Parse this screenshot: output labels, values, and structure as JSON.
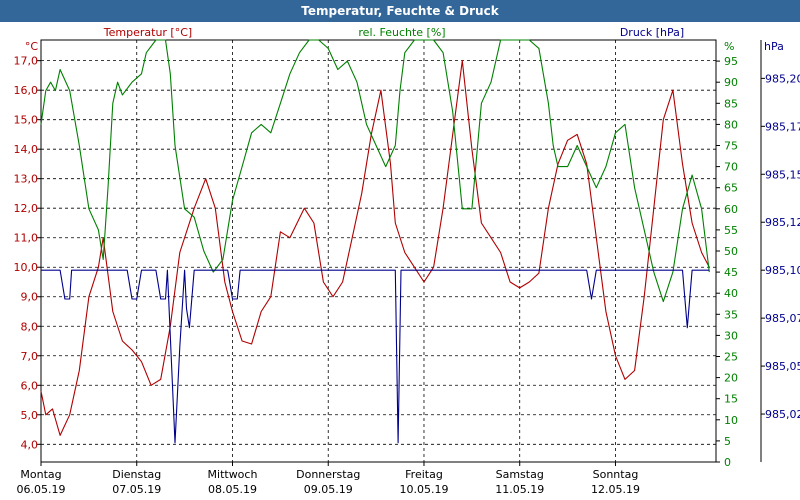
{
  "window": {
    "title": "Temperatur, Feuchte & Druck"
  },
  "colors": {
    "temperature": "#b00000",
    "humidity": "#008000",
    "pressure": "#00008b",
    "title_bg": "#336699"
  },
  "chart_data": {
    "type": "line",
    "title": "Temperatur, Feuchte & Druck",
    "grid": true,
    "axes": {
      "temperature": {
        "label": "Temperatur [°C]",
        "unit": "°C",
        "range": [
          3.4,
          17.7
        ],
        "ticks": [
          4.0,
          5.0,
          6.0,
          7.0,
          8.0,
          9.0,
          10.0,
          11.0,
          12.0,
          13.0,
          14.0,
          15.0,
          16.0,
          17.0
        ]
      },
      "humidity": {
        "label": "rel. Feuchte [%]",
        "unit": "%",
        "range": [
          0,
          100
        ],
        "ticks": [
          0,
          5,
          10,
          15,
          20,
          25,
          30,
          35,
          40,
          45,
          50,
          55,
          60,
          65,
          70,
          75,
          80,
          85,
          90,
          95
        ]
      },
      "pressure": {
        "label": "Druck [hPa]",
        "unit": "hPa",
        "range": [
          985.0,
          985.22
        ],
        "ticks": [
          "985,02",
          "985,05",
          "985,07",
          "985,10",
          "985,12",
          "985,15",
          "985,17",
          "985,20"
        ],
        "tick_values": [
          985.025,
          985.05,
          985.075,
          985.1,
          985.125,
          985.15,
          985.175,
          985.2
        ]
      }
    },
    "x_axis": {
      "range": [
        0,
        7.05
      ],
      "categories": [
        {
          "day": "Montag",
          "date": "06.05.19"
        },
        {
          "day": "Dienstag",
          "date": "07.05.19"
        },
        {
          "day": "Mittwoch",
          "date": "08.05.19"
        },
        {
          "day": "Donnerstag",
          "date": "09.05.19"
        },
        {
          "day": "Freitag",
          "date": "10.05.19"
        },
        {
          "day": "Samstag",
          "date": "11.05.19"
        },
        {
          "day": "Sonntag",
          "date": "12.05.19"
        }
      ]
    },
    "series": [
      {
        "name": "Temperatur [°C]",
        "axis": "temperature",
        "points": [
          [
            0.0,
            5.8
          ],
          [
            0.05,
            5.0
          ],
          [
            0.12,
            5.2
          ],
          [
            0.2,
            4.3
          ],
          [
            0.3,
            5.0
          ],
          [
            0.4,
            6.5
          ],
          [
            0.5,
            9.0
          ],
          [
            0.6,
            10.0
          ],
          [
            0.65,
            11.0
          ],
          [
            0.75,
            8.5
          ],
          [
            0.85,
            7.5
          ],
          [
            0.95,
            7.2
          ],
          [
            1.05,
            6.8
          ],
          [
            1.15,
            6.0
          ],
          [
            1.25,
            6.2
          ],
          [
            1.35,
            8.0
          ],
          [
            1.45,
            10.5
          ],
          [
            1.6,
            12.0
          ],
          [
            1.72,
            13.0
          ],
          [
            1.82,
            12.0
          ],
          [
            1.92,
            9.5
          ],
          [
            2.0,
            8.5
          ],
          [
            2.1,
            7.5
          ],
          [
            2.2,
            7.4
          ],
          [
            2.3,
            8.5
          ],
          [
            2.4,
            9.0
          ],
          [
            2.5,
            11.2
          ],
          [
            2.6,
            11.0
          ],
          [
            2.75,
            12.0
          ],
          [
            2.85,
            11.5
          ],
          [
            2.95,
            9.5
          ],
          [
            3.05,
            9.0
          ],
          [
            3.15,
            9.5
          ],
          [
            3.25,
            11.0
          ],
          [
            3.35,
            12.5
          ],
          [
            3.45,
            14.5
          ],
          [
            3.55,
            16.0
          ],
          [
            3.65,
            13.5
          ],
          [
            3.7,
            11.5
          ],
          [
            3.8,
            10.5
          ],
          [
            3.9,
            10.0
          ],
          [
            4.0,
            9.5
          ],
          [
            4.1,
            10.0
          ],
          [
            4.2,
            12.0
          ],
          [
            4.3,
            14.5
          ],
          [
            4.4,
            17.0
          ],
          [
            4.5,
            14.0
          ],
          [
            4.6,
            11.5
          ],
          [
            4.7,
            11.0
          ],
          [
            4.8,
            10.5
          ],
          [
            4.9,
            9.5
          ],
          [
            5.0,
            9.3
          ],
          [
            5.1,
            9.5
          ],
          [
            5.2,
            9.8
          ],
          [
            5.3,
            12.0
          ],
          [
            5.4,
            13.5
          ],
          [
            5.5,
            14.3
          ],
          [
            5.6,
            14.5
          ],
          [
            5.7,
            13.5
          ],
          [
            5.8,
            11.0
          ],
          [
            5.9,
            8.5
          ],
          [
            6.0,
            7.0
          ],
          [
            6.1,
            6.2
          ],
          [
            6.2,
            6.5
          ],
          [
            6.3,
            9.0
          ],
          [
            6.4,
            12.0
          ],
          [
            6.5,
            15.0
          ],
          [
            6.6,
            16.0
          ],
          [
            6.7,
            13.5
          ],
          [
            6.8,
            11.5
          ],
          [
            6.9,
            10.5
          ],
          [
            6.98,
            10.0
          ]
        ]
      },
      {
        "name": "rel. Feuchte [%]",
        "axis": "humidity",
        "points": [
          [
            0.0,
            80
          ],
          [
            0.05,
            88
          ],
          [
            0.1,
            90
          ],
          [
            0.15,
            88
          ],
          [
            0.2,
            93
          ],
          [
            0.3,
            88
          ],
          [
            0.4,
            75
          ],
          [
            0.5,
            60
          ],
          [
            0.6,
            55
          ],
          [
            0.65,
            48
          ],
          [
            0.7,
            65
          ],
          [
            0.75,
            85
          ],
          [
            0.8,
            90
          ],
          [
            0.85,
            87
          ],
          [
            0.95,
            90
          ],
          [
            1.05,
            92
          ],
          [
            1.1,
            97
          ],
          [
            1.2,
            100
          ],
          [
            1.3,
            100
          ],
          [
            1.35,
            92
          ],
          [
            1.4,
            75
          ],
          [
            1.5,
            60
          ],
          [
            1.6,
            58
          ],
          [
            1.7,
            50
          ],
          [
            1.8,
            45
          ],
          [
            1.9,
            48
          ],
          [
            2.0,
            62
          ],
          [
            2.1,
            70
          ],
          [
            2.2,
            78
          ],
          [
            2.3,
            80
          ],
          [
            2.4,
            78
          ],
          [
            2.5,
            85
          ],
          [
            2.6,
            92
          ],
          [
            2.7,
            97
          ],
          [
            2.8,
            100
          ],
          [
            2.9,
            100
          ],
          [
            3.0,
            98
          ],
          [
            3.1,
            93
          ],
          [
            3.2,
            95
          ],
          [
            3.3,
            90
          ],
          [
            3.4,
            80
          ],
          [
            3.5,
            75
          ],
          [
            3.6,
            70
          ],
          [
            3.7,
            75
          ],
          [
            3.75,
            88
          ],
          [
            3.8,
            97
          ],
          [
            3.9,
            100
          ],
          [
            4.0,
            100
          ],
          [
            4.1,
            100
          ],
          [
            4.2,
            97
          ],
          [
            4.3,
            83
          ],
          [
            4.4,
            60
          ],
          [
            4.5,
            60
          ],
          [
            4.6,
            85
          ],
          [
            4.7,
            90
          ],
          [
            4.8,
            100
          ],
          [
            4.9,
            100
          ],
          [
            5.0,
            100
          ],
          [
            5.1,
            100
          ],
          [
            5.2,
            98
          ],
          [
            5.3,
            85
          ],
          [
            5.35,
            75
          ],
          [
            5.4,
            70
          ],
          [
            5.5,
            70
          ],
          [
            5.6,
            75
          ],
          [
            5.7,
            70
          ],
          [
            5.8,
            65
          ],
          [
            5.9,
            70
          ],
          [
            6.0,
            78
          ],
          [
            6.1,
            80
          ],
          [
            6.2,
            65
          ],
          [
            6.3,
            55
          ],
          [
            6.4,
            45
          ],
          [
            6.5,
            38
          ],
          [
            6.6,
            45
          ],
          [
            6.7,
            60
          ],
          [
            6.8,
            68
          ],
          [
            6.9,
            60
          ],
          [
            6.98,
            45
          ]
        ]
      },
      {
        "name": "Druck [hPa]",
        "axis": "pressure",
        "points": [
          [
            0.0,
            985.1
          ],
          [
            0.2,
            985.1
          ],
          [
            0.25,
            985.085
          ],
          [
            0.3,
            985.085
          ],
          [
            0.32,
            985.1
          ],
          [
            0.9,
            985.1
          ],
          [
            0.95,
            985.085
          ],
          [
            1.0,
            985.085
          ],
          [
            1.05,
            985.1
          ],
          [
            1.2,
            985.1
          ],
          [
            1.25,
            985.085
          ],
          [
            1.3,
            985.085
          ],
          [
            1.32,
            985.1
          ],
          [
            1.4,
            985.01
          ],
          [
            1.45,
            985.06
          ],
          [
            1.5,
            985.1
          ],
          [
            1.52,
            985.08
          ],
          [
            1.55,
            985.07
          ],
          [
            1.6,
            985.1
          ],
          [
            1.95,
            985.1
          ],
          [
            2.0,
            985.085
          ],
          [
            2.05,
            985.085
          ],
          [
            2.08,
            985.1
          ],
          [
            3.7,
            985.1
          ],
          [
            3.73,
            985.01
          ],
          [
            3.76,
            985.1
          ],
          [
            5.7,
            985.1
          ],
          [
            5.75,
            985.085
          ],
          [
            5.8,
            985.1
          ],
          [
            6.7,
            985.1
          ],
          [
            6.75,
            985.07
          ],
          [
            6.8,
            985.1
          ],
          [
            6.98,
            985.1
          ]
        ]
      }
    ]
  }
}
